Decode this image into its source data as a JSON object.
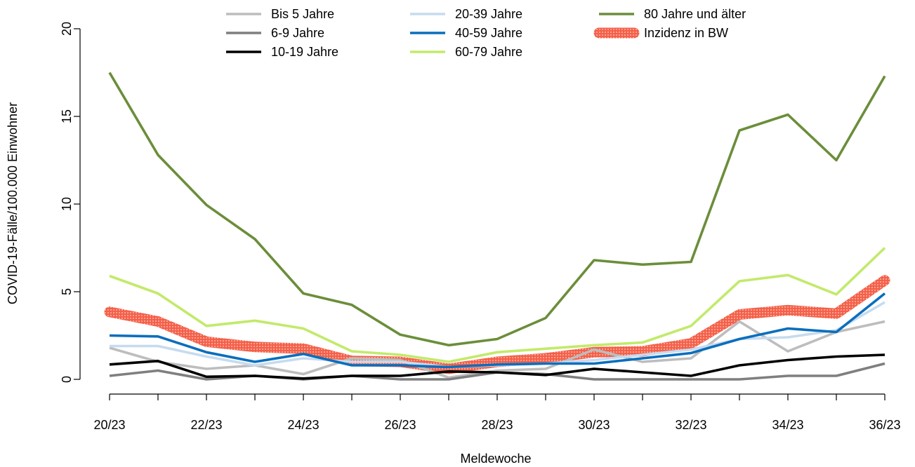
{
  "chart_data": {
    "type": "line",
    "title": "",
    "xlabel": "Meldewoche",
    "ylabel": "COVID-19-Fälle/100.000 Einwohner",
    "ylim": [
      0,
      20
    ],
    "yticks": [
      0,
      5,
      10,
      15,
      20
    ],
    "x": [
      "20/23",
      "21/23",
      "22/23",
      "23/23",
      "24/23",
      "25/23",
      "26/23",
      "27/23",
      "28/23",
      "29/23",
      "30/23",
      "31/23",
      "32/23",
      "33/23",
      "34/23",
      "35/23",
      "36/23"
    ],
    "xtick_labels": [
      "20/23",
      "22/23",
      "24/23",
      "26/23",
      "28/23",
      "30/23",
      "32/23",
      "34/23",
      "36/23"
    ],
    "grid": false,
    "legend_position": "top",
    "series": [
      {
        "name": "Bis 5 Jahre",
        "color": "#bdbdbd",
        "values": [
          1.8,
          1.0,
          0.6,
          0.8,
          0.3,
          1.2,
          1.1,
          0.1,
          0.5,
          0.6,
          1.7,
          1.0,
          1.2,
          3.3,
          1.6,
          2.7,
          3.3
        ]
      },
      {
        "name": "6-9 Jahre",
        "color": "#7f7f7f",
        "values": [
          0.2,
          0.5,
          0.0,
          0.2,
          0.0,
          0.2,
          0.0,
          0.0,
          0.4,
          0.3,
          0.0,
          0.0,
          0.0,
          0.0,
          0.2,
          0.2,
          0.9
        ]
      },
      {
        "name": "10-19 Jahre",
        "color": "#000000",
        "values": [
          0.85,
          1.05,
          0.15,
          0.2,
          0.05,
          0.2,
          0.2,
          0.45,
          0.4,
          0.25,
          0.6,
          0.4,
          0.2,
          0.8,
          1.1,
          1.3,
          1.4
        ]
      },
      {
        "name": "20-39 Jahre",
        "color": "#c6dbef",
        "values": [
          1.9,
          1.9,
          1.3,
          0.8,
          1.2,
          1.0,
          1.0,
          0.7,
          0.8,
          0.9,
          1.1,
          1.4,
          1.7,
          2.3,
          2.4,
          2.8,
          4.4
        ]
      },
      {
        "name": "40-59 Jahre",
        "color": "#0a6ebd",
        "values": [
          2.5,
          2.45,
          1.55,
          1.0,
          1.45,
          0.8,
          0.8,
          0.7,
          0.85,
          0.9,
          0.9,
          1.2,
          1.5,
          2.3,
          2.9,
          2.7,
          4.9
        ]
      },
      {
        "name": "60-79 Jahre",
        "color": "#c2ea6a",
        "values": [
          5.9,
          4.9,
          3.05,
          3.35,
          2.9,
          1.6,
          1.4,
          1.0,
          1.55,
          1.75,
          1.95,
          2.1,
          3.05,
          5.6,
          5.95,
          4.85,
          7.5
        ]
      },
      {
        "name": "80 Jahre und älter",
        "color": "#6b8e3a",
        "values": [
          17.5,
          12.8,
          9.95,
          8.0,
          4.9,
          4.25,
          2.55,
          1.95,
          2.3,
          3.5,
          6.8,
          6.55,
          6.7,
          14.2,
          15.1,
          12.5,
          17.3
        ]
      },
      {
        "name": "Inzidenz in BW",
        "color": "#f0603a",
        "values": [
          3.85,
          3.3,
          2.15,
          1.85,
          1.75,
          1.05,
          1.0,
          0.6,
          1.0,
          1.2,
          1.55,
          1.6,
          2.05,
          3.7,
          3.95,
          3.75,
          5.65
        ]
      }
    ]
  }
}
